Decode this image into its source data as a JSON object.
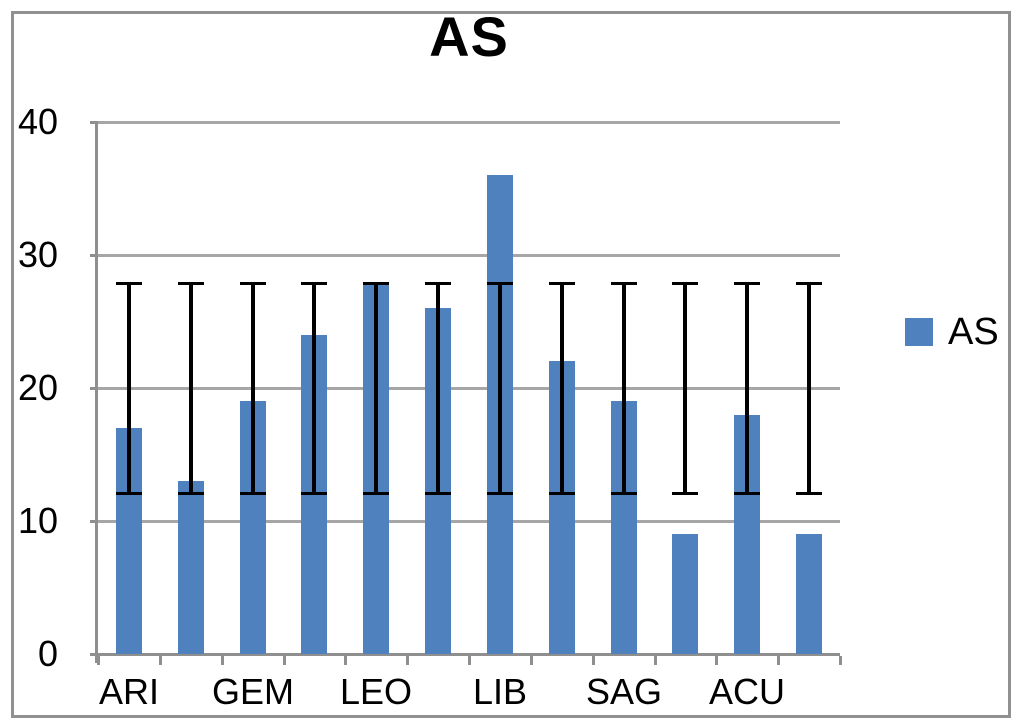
{
  "chart_data": {
    "type": "bar",
    "title": "AS",
    "categories": [
      "ARI",
      "",
      "GEM",
      "",
      "LEO",
      "",
      "LIB",
      "",
      "SAG",
      "",
      "ACU",
      ""
    ],
    "series": [
      {
        "name": "AS",
        "values": [
          17,
          13,
          19,
          24,
          28,
          26,
          36,
          22,
          19,
          9,
          18,
          9
        ]
      }
    ],
    "error_bars": {
      "upper_value": 27.9,
      "lower_value": 12.1,
      "note": "identical vertical error bar drawn at every category position"
    },
    "xlabel": "",
    "ylabel": "",
    "ylim": [
      0,
      40
    ],
    "yticks": [
      0,
      10,
      20,
      30,
      40
    ],
    "grid": "horizontal",
    "legend": {
      "position": "right",
      "entries": [
        {
          "label": "AS",
          "color": "#4e81bd"
        }
      ]
    }
  },
  "colors": {
    "bar": "#4e81bd",
    "gridline": "#a6a6a6",
    "axis": "#8f8f8f",
    "frame_border": "#919191",
    "error_bar": "#000000",
    "text": "#000000",
    "background": "#ffffff"
  }
}
